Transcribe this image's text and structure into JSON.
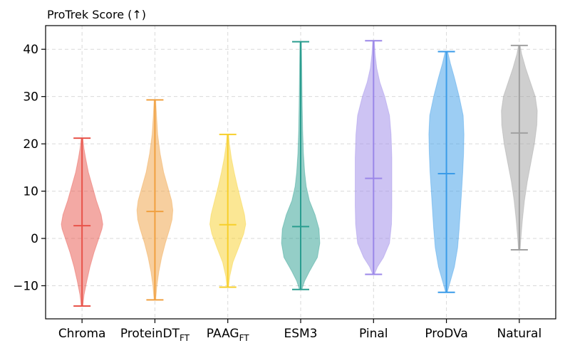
{
  "chart_data": {
    "type": "violin",
    "title": "ProTrek Score (↑)",
    "xlabel": "",
    "ylabel": "",
    "ylim": [
      -17,
      45
    ],
    "yticks": [
      -10,
      0,
      10,
      20,
      30,
      40
    ],
    "grid": true,
    "categories": [
      {
        "base": "Chroma",
        "sub": ""
      },
      {
        "base": "ProteinDT",
        "sub": "FT"
      },
      {
        "base": "PAAG",
        "sub": "FT"
      },
      {
        "base": "ESM3",
        "sub": ""
      },
      {
        "base": "Pinal",
        "sub": ""
      },
      {
        "base": "ProDVa",
        "sub": ""
      },
      {
        "base": "Natural",
        "sub": ""
      }
    ],
    "series": [
      {
        "min": -14.3,
        "max": 21.2,
        "median": 2.7,
        "color": "#e8534a",
        "profile": [
          [
            -14.3,
            0.02
          ],
          [
            -12,
            0.05
          ],
          [
            -9,
            0.12
          ],
          [
            -6,
            0.2
          ],
          [
            -3,
            0.3
          ],
          [
            0,
            0.42
          ],
          [
            2,
            0.5
          ],
          [
            3,
            0.52
          ],
          [
            5,
            0.48
          ],
          [
            8,
            0.36
          ],
          [
            11,
            0.26
          ],
          [
            14,
            0.16
          ],
          [
            17,
            0.09
          ],
          [
            19,
            0.05
          ],
          [
            21.2,
            0.02
          ]
        ]
      },
      {
        "min": -13.0,
        "max": 29.3,
        "median": 5.7,
        "color": "#f0a040",
        "profile": [
          [
            -13,
            0.02
          ],
          [
            -10,
            0.05
          ],
          [
            -7,
            0.1
          ],
          [
            -4,
            0.17
          ],
          [
            -1,
            0.26
          ],
          [
            2,
            0.37
          ],
          [
            4,
            0.43
          ],
          [
            6,
            0.45
          ],
          [
            8,
            0.42
          ],
          [
            11,
            0.32
          ],
          [
            14,
            0.22
          ],
          [
            18,
            0.13
          ],
          [
            22,
            0.07
          ],
          [
            26,
            0.04
          ],
          [
            29.3,
            0.02
          ]
        ]
      },
      {
        "min": -10.3,
        "max": 22.0,
        "median": 2.9,
        "color": "#f7cf2a",
        "profile": [
          [
            -10.3,
            0.02
          ],
          [
            -8,
            0.05
          ],
          [
            -5,
            0.13
          ],
          [
            -2,
            0.27
          ],
          [
            1,
            0.4
          ],
          [
            3,
            0.45
          ],
          [
            5,
            0.42
          ],
          [
            8,
            0.33
          ],
          [
            11,
            0.24
          ],
          [
            14,
            0.16
          ],
          [
            17,
            0.09
          ],
          [
            20,
            0.04
          ],
          [
            22,
            0.02
          ]
        ]
      },
      {
        "min": -10.8,
        "max": 41.6,
        "median": 2.5,
        "color": "#2a9d8f",
        "profile": [
          [
            -10.8,
            0.03
          ],
          [
            -9,
            0.1
          ],
          [
            -7,
            0.22
          ],
          [
            -4,
            0.42
          ],
          [
            -1,
            0.48
          ],
          [
            2,
            0.46
          ],
          [
            5,
            0.36
          ],
          [
            8,
            0.22
          ],
          [
            11,
            0.14
          ],
          [
            14,
            0.1
          ],
          [
            18,
            0.07
          ],
          [
            23,
            0.05
          ],
          [
            28,
            0.04
          ],
          [
            34,
            0.03
          ],
          [
            41.6,
            0.02
          ]
        ]
      },
      {
        "min": -7.6,
        "max": 41.8,
        "median": 12.7,
        "color": "#9b87e8",
        "profile": [
          [
            -7.6,
            0.02
          ],
          [
            -6,
            0.1
          ],
          [
            -4,
            0.25
          ],
          [
            -1,
            0.4
          ],
          [
            3,
            0.45
          ],
          [
            7,
            0.46
          ],
          [
            12,
            0.46
          ],
          [
            17,
            0.46
          ],
          [
            22,
            0.44
          ],
          [
            26,
            0.4
          ],
          [
            30,
            0.28
          ],
          [
            33,
            0.16
          ],
          [
            36,
            0.08
          ],
          [
            39,
            0.04
          ],
          [
            41.8,
            0.02
          ]
        ]
      },
      {
        "min": -11.4,
        "max": 39.5,
        "median": 13.7,
        "color": "#3a9be8",
        "profile": [
          [
            -11.4,
            0.02
          ],
          [
            -9,
            0.1
          ],
          [
            -6,
            0.2
          ],
          [
            -2,
            0.28
          ],
          [
            2,
            0.32
          ],
          [
            6,
            0.35
          ],
          [
            10,
            0.38
          ],
          [
            14,
            0.41
          ],
          [
            18,
            0.43
          ],
          [
            22,
            0.44
          ],
          [
            26,
            0.42
          ],
          [
            30,
            0.32
          ],
          [
            34,
            0.2
          ],
          [
            37,
            0.1
          ],
          [
            39.5,
            0.03
          ]
        ]
      },
      {
        "min": -2.4,
        "max": 40.8,
        "median": 22.3,
        "color": "#a0a0a0",
        "profile": [
          [
            -2.4,
            0.02
          ],
          [
            0,
            0.04
          ],
          [
            4,
            0.08
          ],
          [
            8,
            0.13
          ],
          [
            12,
            0.2
          ],
          [
            16,
            0.29
          ],
          [
            20,
            0.38
          ],
          [
            24,
            0.44
          ],
          [
            27,
            0.45
          ],
          [
            30,
            0.4
          ],
          [
            33,
            0.28
          ],
          [
            36,
            0.16
          ],
          [
            39,
            0.06
          ],
          [
            40.8,
            0.02
          ]
        ]
      }
    ]
  }
}
